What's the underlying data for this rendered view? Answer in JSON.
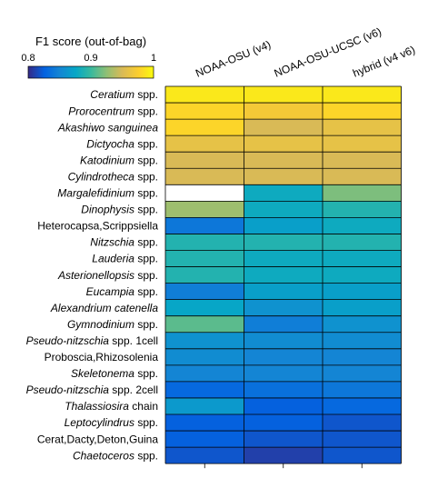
{
  "chart_data": {
    "type": "heatmap",
    "colorbar": {
      "label": "F1 score (out-of-bag)",
      "min": 0.8,
      "max": 1,
      "ticks": [
        0.8,
        0.9,
        1
      ],
      "tick_labels": [
        "0.8",
        "0.9",
        "1"
      ],
      "colormap": "parula"
    },
    "columns": [
      "NOAA-OSU (v4)",
      "NOAA-OSU-UCSC (v6)",
      "hybrid (v4 v6)"
    ],
    "rows": [
      {
        "parts": [
          {
            "t": "Ceratium",
            "i": true
          },
          {
            "t": " spp.",
            "i": false
          }
        ]
      },
      {
        "parts": [
          {
            "t": "Prorocentrum",
            "i": true
          },
          {
            "t": " spp.",
            "i": false
          }
        ]
      },
      {
        "parts": [
          {
            "t": "Akashiwo sanguinea",
            "i": true
          }
        ]
      },
      {
        "parts": [
          {
            "t": "Dictyocha",
            "i": true
          },
          {
            "t": " spp.",
            "i": false
          }
        ]
      },
      {
        "parts": [
          {
            "t": "Katodinium",
            "i": true
          },
          {
            "t": " spp.",
            "i": false
          }
        ]
      },
      {
        "parts": [
          {
            "t": "Cylindrotheca",
            "i": true
          },
          {
            "t": " spp.",
            "i": false
          }
        ]
      },
      {
        "parts": [
          {
            "t": "Margalefidinium",
            "i": true
          },
          {
            "t": " spp.",
            "i": false
          }
        ]
      },
      {
        "parts": [
          {
            "t": "Dinophysis",
            "i": true
          },
          {
            "t": " spp.",
            "i": false
          }
        ]
      },
      {
        "parts": [
          {
            "t": "Heterocapsa,Scrippsiella",
            "i": false
          }
        ]
      },
      {
        "parts": [
          {
            "t": "Nitzschia",
            "i": true
          },
          {
            "t": " spp.",
            "i": false
          }
        ]
      },
      {
        "parts": [
          {
            "t": "Lauderia",
            "i": true
          },
          {
            "t": " spp.",
            "i": false
          }
        ]
      },
      {
        "parts": [
          {
            "t": "Asterionellopsis",
            "i": true
          },
          {
            "t": " spp.",
            "i": false
          }
        ]
      },
      {
        "parts": [
          {
            "t": "Eucampia",
            "i": true
          },
          {
            "t": " spp.",
            "i": false
          }
        ]
      },
      {
        "parts": [
          {
            "t": "Alexandrium catenella",
            "i": true
          }
        ]
      },
      {
        "parts": [
          {
            "t": "Gymnodinium",
            "i": true
          },
          {
            "t": " spp.",
            "i": false
          }
        ]
      },
      {
        "parts": [
          {
            "t": "Pseudo-nitzschia",
            "i": true
          },
          {
            "t": " spp. 1cell",
            "i": false
          }
        ]
      },
      {
        "parts": [
          {
            "t": "Proboscia,Rhizosolenia",
            "i": false
          }
        ]
      },
      {
        "parts": [
          {
            "t": "Skeletonema",
            "i": true
          },
          {
            "t": " spp.",
            "i": false
          }
        ]
      },
      {
        "parts": [
          {
            "t": "Pseudo-nitzschia",
            "i": true
          },
          {
            "t": " spp. 2cell",
            "i": false
          }
        ]
      },
      {
        "parts": [
          {
            "t": "Thalassiosira",
            "i": true
          },
          {
            "t": " chain",
            "i": false
          }
        ]
      },
      {
        "parts": [
          {
            "t": "Leptocylindrus",
            "i": true
          },
          {
            "t": " spp.",
            "i": false
          }
        ]
      },
      {
        "parts": [
          {
            "t": "Cerat,Dacty,Deton,Guina",
            "i": false
          }
        ]
      },
      {
        "parts": [
          {
            "t": "Chaetoceros",
            "i": true
          },
          {
            "t": " spp.",
            "i": false
          }
        ]
      }
    ],
    "values": [
      [
        0.99,
        0.99,
        0.99
      ],
      [
        0.98,
        0.97,
        0.98
      ],
      [
        0.98,
        0.95,
        0.96
      ],
      [
        0.96,
        0.96,
        0.96
      ],
      [
        0.95,
        0.95,
        0.95
      ],
      [
        0.95,
        0.95,
        0.95
      ],
      [
        null,
        0.88,
        0.92
      ],
      [
        0.93,
        0.88,
        0.89
      ],
      [
        0.84,
        0.87,
        0.88
      ],
      [
        0.89,
        0.89,
        0.89
      ],
      [
        0.89,
        0.88,
        0.88
      ],
      [
        0.89,
        0.88,
        0.88
      ],
      [
        0.845,
        0.87,
        0.87
      ],
      [
        0.875,
        0.86,
        0.87
      ],
      [
        0.91,
        0.845,
        0.86
      ],
      [
        0.86,
        0.855,
        0.855
      ],
      [
        0.855,
        0.85,
        0.85
      ],
      [
        0.85,
        0.85,
        0.85
      ],
      [
        0.83,
        0.835,
        0.84
      ],
      [
        0.865,
        0.825,
        0.83
      ],
      [
        0.825,
        0.825,
        0.82
      ],
      [
        0.825,
        0.82,
        0.82
      ],
      [
        0.82,
        0.81,
        0.82
      ]
    ]
  }
}
